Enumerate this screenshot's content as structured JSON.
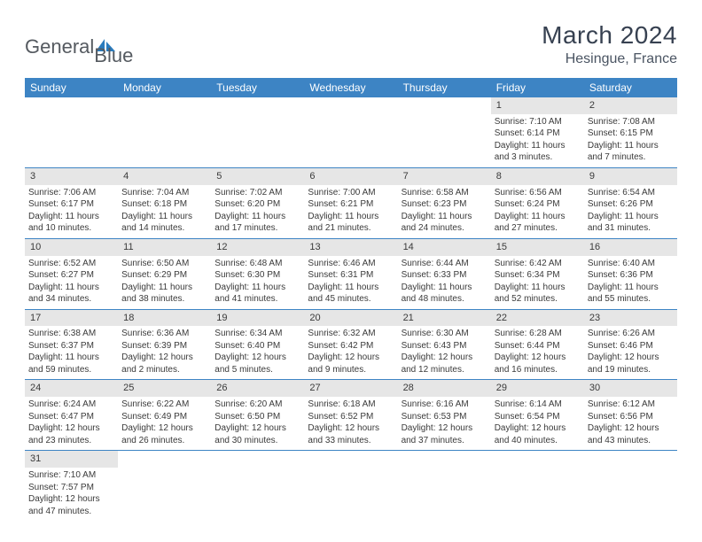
{
  "brand": {
    "first": "General",
    "second": "Blue",
    "icon_color": "#2a7bbd"
  },
  "title": {
    "month": "March 2024",
    "location": "Hesingue, France"
  },
  "style": {
    "header_bg": "#3d84c4",
    "header_fg": "#ffffff",
    "daynum_bg": "#e6e6e6",
    "border_color": "#3d84c4",
    "text_color": "#3a3a3a"
  },
  "weekdays": [
    "Sunday",
    "Monday",
    "Tuesday",
    "Wednesday",
    "Thursday",
    "Friday",
    "Saturday"
  ],
  "weeks": [
    [
      null,
      null,
      null,
      null,
      null,
      {
        "n": "1",
        "sr": "Sunrise: 7:10 AM",
        "ss": "Sunset: 6:14 PM",
        "d1": "Daylight: 11 hours",
        "d2": "and 3 minutes."
      },
      {
        "n": "2",
        "sr": "Sunrise: 7:08 AM",
        "ss": "Sunset: 6:15 PM",
        "d1": "Daylight: 11 hours",
        "d2": "and 7 minutes."
      }
    ],
    [
      {
        "n": "3",
        "sr": "Sunrise: 7:06 AM",
        "ss": "Sunset: 6:17 PM",
        "d1": "Daylight: 11 hours",
        "d2": "and 10 minutes."
      },
      {
        "n": "4",
        "sr": "Sunrise: 7:04 AM",
        "ss": "Sunset: 6:18 PM",
        "d1": "Daylight: 11 hours",
        "d2": "and 14 minutes."
      },
      {
        "n": "5",
        "sr": "Sunrise: 7:02 AM",
        "ss": "Sunset: 6:20 PM",
        "d1": "Daylight: 11 hours",
        "d2": "and 17 minutes."
      },
      {
        "n": "6",
        "sr": "Sunrise: 7:00 AM",
        "ss": "Sunset: 6:21 PM",
        "d1": "Daylight: 11 hours",
        "d2": "and 21 minutes."
      },
      {
        "n": "7",
        "sr": "Sunrise: 6:58 AM",
        "ss": "Sunset: 6:23 PM",
        "d1": "Daylight: 11 hours",
        "d2": "and 24 minutes."
      },
      {
        "n": "8",
        "sr": "Sunrise: 6:56 AM",
        "ss": "Sunset: 6:24 PM",
        "d1": "Daylight: 11 hours",
        "d2": "and 27 minutes."
      },
      {
        "n": "9",
        "sr": "Sunrise: 6:54 AM",
        "ss": "Sunset: 6:26 PM",
        "d1": "Daylight: 11 hours",
        "d2": "and 31 minutes."
      }
    ],
    [
      {
        "n": "10",
        "sr": "Sunrise: 6:52 AM",
        "ss": "Sunset: 6:27 PM",
        "d1": "Daylight: 11 hours",
        "d2": "and 34 minutes."
      },
      {
        "n": "11",
        "sr": "Sunrise: 6:50 AM",
        "ss": "Sunset: 6:29 PM",
        "d1": "Daylight: 11 hours",
        "d2": "and 38 minutes."
      },
      {
        "n": "12",
        "sr": "Sunrise: 6:48 AM",
        "ss": "Sunset: 6:30 PM",
        "d1": "Daylight: 11 hours",
        "d2": "and 41 minutes."
      },
      {
        "n": "13",
        "sr": "Sunrise: 6:46 AM",
        "ss": "Sunset: 6:31 PM",
        "d1": "Daylight: 11 hours",
        "d2": "and 45 minutes."
      },
      {
        "n": "14",
        "sr": "Sunrise: 6:44 AM",
        "ss": "Sunset: 6:33 PM",
        "d1": "Daylight: 11 hours",
        "d2": "and 48 minutes."
      },
      {
        "n": "15",
        "sr": "Sunrise: 6:42 AM",
        "ss": "Sunset: 6:34 PM",
        "d1": "Daylight: 11 hours",
        "d2": "and 52 minutes."
      },
      {
        "n": "16",
        "sr": "Sunrise: 6:40 AM",
        "ss": "Sunset: 6:36 PM",
        "d1": "Daylight: 11 hours",
        "d2": "and 55 minutes."
      }
    ],
    [
      {
        "n": "17",
        "sr": "Sunrise: 6:38 AM",
        "ss": "Sunset: 6:37 PM",
        "d1": "Daylight: 11 hours",
        "d2": "and 59 minutes."
      },
      {
        "n": "18",
        "sr": "Sunrise: 6:36 AM",
        "ss": "Sunset: 6:39 PM",
        "d1": "Daylight: 12 hours",
        "d2": "and 2 minutes."
      },
      {
        "n": "19",
        "sr": "Sunrise: 6:34 AM",
        "ss": "Sunset: 6:40 PM",
        "d1": "Daylight: 12 hours",
        "d2": "and 5 minutes."
      },
      {
        "n": "20",
        "sr": "Sunrise: 6:32 AM",
        "ss": "Sunset: 6:42 PM",
        "d1": "Daylight: 12 hours",
        "d2": "and 9 minutes."
      },
      {
        "n": "21",
        "sr": "Sunrise: 6:30 AM",
        "ss": "Sunset: 6:43 PM",
        "d1": "Daylight: 12 hours",
        "d2": "and 12 minutes."
      },
      {
        "n": "22",
        "sr": "Sunrise: 6:28 AM",
        "ss": "Sunset: 6:44 PM",
        "d1": "Daylight: 12 hours",
        "d2": "and 16 minutes."
      },
      {
        "n": "23",
        "sr": "Sunrise: 6:26 AM",
        "ss": "Sunset: 6:46 PM",
        "d1": "Daylight: 12 hours",
        "d2": "and 19 minutes."
      }
    ],
    [
      {
        "n": "24",
        "sr": "Sunrise: 6:24 AM",
        "ss": "Sunset: 6:47 PM",
        "d1": "Daylight: 12 hours",
        "d2": "and 23 minutes."
      },
      {
        "n": "25",
        "sr": "Sunrise: 6:22 AM",
        "ss": "Sunset: 6:49 PM",
        "d1": "Daylight: 12 hours",
        "d2": "and 26 minutes."
      },
      {
        "n": "26",
        "sr": "Sunrise: 6:20 AM",
        "ss": "Sunset: 6:50 PM",
        "d1": "Daylight: 12 hours",
        "d2": "and 30 minutes."
      },
      {
        "n": "27",
        "sr": "Sunrise: 6:18 AM",
        "ss": "Sunset: 6:52 PM",
        "d1": "Daylight: 12 hours",
        "d2": "and 33 minutes."
      },
      {
        "n": "28",
        "sr": "Sunrise: 6:16 AM",
        "ss": "Sunset: 6:53 PM",
        "d1": "Daylight: 12 hours",
        "d2": "and 37 minutes."
      },
      {
        "n": "29",
        "sr": "Sunrise: 6:14 AM",
        "ss": "Sunset: 6:54 PM",
        "d1": "Daylight: 12 hours",
        "d2": "and 40 minutes."
      },
      {
        "n": "30",
        "sr": "Sunrise: 6:12 AM",
        "ss": "Sunset: 6:56 PM",
        "d1": "Daylight: 12 hours",
        "d2": "and 43 minutes."
      }
    ],
    [
      {
        "n": "31",
        "sr": "Sunrise: 7:10 AM",
        "ss": "Sunset: 7:57 PM",
        "d1": "Daylight: 12 hours",
        "d2": "and 47 minutes."
      },
      null,
      null,
      null,
      null,
      null,
      null
    ]
  ]
}
